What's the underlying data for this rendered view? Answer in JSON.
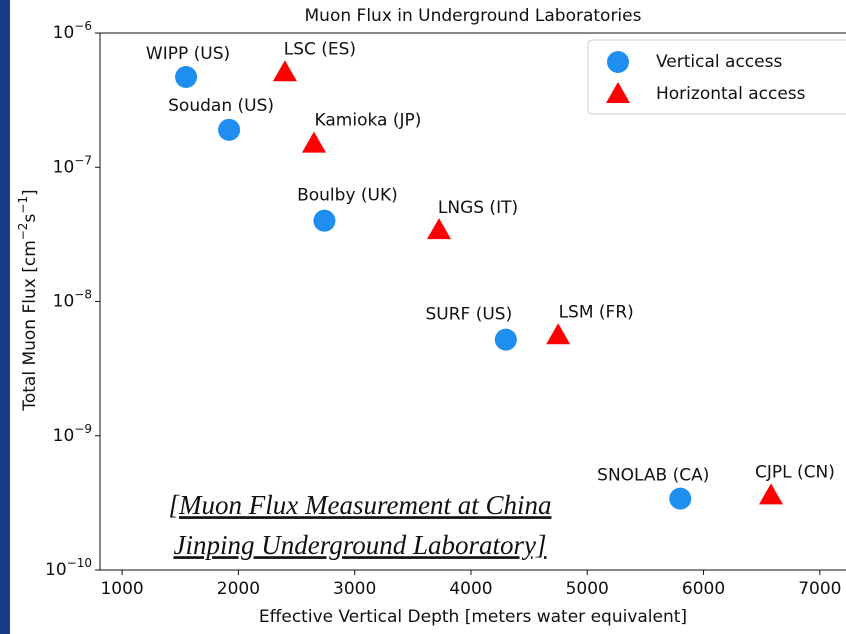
{
  "chart_data": {
    "type": "scatter",
    "title": "Muon Flux in Underground Laboratories",
    "x_label": "Effective Vertical Depth [meters water equivalent]",
    "y_label_parts": [
      "Total Muon Flux [cm",
      "−2",
      "s",
      "−1",
      "]"
    ],
    "xlim": [
      810,
      7225
    ],
    "ylim": [
      1e-10,
      1e-06
    ],
    "log_y": true,
    "xticks": [
      1000,
      2000,
      3000,
      4000,
      5000,
      6000,
      7000
    ],
    "yticks": [
      {
        "value": 1e-10,
        "label": "10",
        "exponent": "−10"
      },
      {
        "value": 1e-09,
        "label": "10",
        "exponent": "−9"
      },
      {
        "value": 1e-08,
        "label": "10",
        "exponent": "−8"
      },
      {
        "value": 1e-07,
        "label": "10",
        "exponent": "−7"
      },
      {
        "value": 1e-06,
        "label": "10",
        "exponent": "−6"
      }
    ],
    "legend": "upper right",
    "series": [
      {
        "name": "Vertical access",
        "color": "#1e8ff0",
        "marker": "circle",
        "labels": [
          "WIPP (US)",
          "Soudan (US)",
          "Boulby (UK)",
          "SURF (US)",
          "SNOLAB (CA)"
        ],
        "x": [
          1550,
          1920,
          2740,
          4300,
          5800
        ],
        "values": [
          4.7e-07,
          1.9e-07,
          4e-08,
          5.2e-09,
          3.4e-10
        ]
      },
      {
        "name": "Horizontal access",
        "color": "#ff0000",
        "marker": "triangle",
        "labels": [
          "LSC (ES)",
          "Kamioka (JP)",
          "LNGS (IT)",
          "LSM (FR)",
          "CJPL (CN)"
        ],
        "x": [
          2400,
          2650,
          3725,
          4750,
          6580
        ],
        "values": [
          5.1e-07,
          1.5e-07,
          3.4e-08,
          5.6e-09,
          3.6e-10
        ]
      }
    ],
    "annotation_lines": [
      "[Muon Flux Measurement at China",
      "Jinping Underground Laboratory]"
    ]
  }
}
